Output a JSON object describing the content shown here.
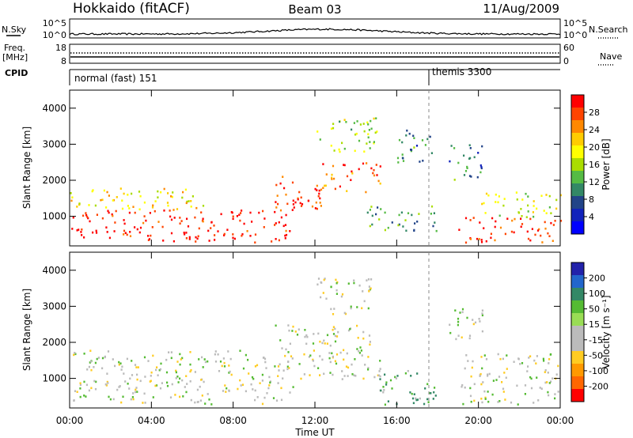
{
  "header": {
    "station": "Hokkaido (fitACF)",
    "beam": "Beam 03",
    "date": "11/Aug/2009"
  },
  "noise_panel": {
    "left_label": "N.Sky",
    "right_label": "N.Search",
    "ticks_left": [
      "10^5",
      "10^0"
    ],
    "ticks_right": [
      "10^5",
      "10^0"
    ]
  },
  "freq_panel": {
    "left_label_line1": "Freq.",
    "left_label_line2": "[MHz]",
    "ticks_left": [
      "18",
      "8"
    ],
    "right_label": "Nave",
    "ticks_right": [
      "60",
      "0"
    ]
  },
  "cpid_panel": {
    "label": "CPID",
    "segments": [
      {
        "name": "normal (fast) 151",
        "start_hour": 0
      },
      {
        "name": "themis 3300",
        "start_hour": 18.0
      }
    ]
  },
  "xaxis": {
    "title": "Time UT",
    "tick_labels": [
      "00:00",
      "04:00",
      "08:00",
      "12:00",
      "16:00",
      "20:00",
      "00:00"
    ],
    "tick_hours": [
      0,
      4,
      8,
      12,
      16,
      20,
      24
    ]
  },
  "yaxis": {
    "title": "Slant Range [km]",
    "tick_labels": [
      "1000",
      "2000",
      "3000",
      "4000"
    ],
    "tick_values": [
      1000,
      2000,
      3000,
      4000
    ],
    "range": [
      180,
      4500
    ]
  },
  "power_colorbar": {
    "title": "Power [dB]",
    "labels": [
      "28",
      "24",
      "20",
      "16",
      "12",
      "8",
      "4"
    ],
    "colors": [
      "#ff0000",
      "#ff4400",
      "#ff8800",
      "#ffcc00",
      "#ffff00",
      "#aadd00",
      "#55bb44",
      "#338866",
      "#224488",
      "#1122bb",
      "#0000ff"
    ]
  },
  "velocity_colorbar": {
    "title": "Velocity [m s⁻¹]",
    "labels": [
      "200",
      "100",
      "50",
      "15",
      "-15",
      "-50",
      "-100",
      "-200"
    ],
    "colors": [
      "#2222aa",
      "#2266cc",
      "#338866",
      "#55bb33",
      "#99dd55",
      "#bbbbbb",
      "#bbbbbb",
      "#ffcc22",
      "#ff9900",
      "#ff6600",
      "#ff0000"
    ]
  },
  "chart_data": {
    "type": "heatmap",
    "title": "Hokkaido (fitACF) Beam 03 11/Aug/2009",
    "xlabel": "Time UT",
    "ylabel": "Slant Range [km]",
    "xlim": [
      0,
      24
    ],
    "ylim": [
      180,
      4500
    ],
    "grid": false,
    "event_marker_hour": 18.0,
    "power_regions": [
      {
        "t0": 0.0,
        "t1": 11.0,
        "r0": 300,
        "r1": 1200,
        "level": "high",
        "approx_db": 28
      },
      {
        "t0": 0.0,
        "t1": 7.0,
        "r0": 1200,
        "r1": 1800,
        "level": "medium",
        "approx_db": 18
      },
      {
        "t0": 10.0,
        "t1": 12.3,
        "r0": 1000,
        "r1": 2200,
        "level": "high",
        "approx_db": 26
      },
      {
        "t0": 12.3,
        "t1": 15.2,
        "r0": 1700,
        "r1": 2500,
        "level": "high",
        "approx_db": 24
      },
      {
        "t0": 12.0,
        "t1": 15.0,
        "r0": 2800,
        "r1": 3800,
        "level": "medium",
        "approx_db": 14
      },
      {
        "t0": 14.5,
        "t1": 18.0,
        "r0": 600,
        "r1": 1300,
        "level": "low",
        "approx_db": 10
      },
      {
        "t0": 16.0,
        "t1": 17.8,
        "r0": 2500,
        "r1": 3500,
        "level": "low",
        "approx_db": 8
      },
      {
        "t0": 18.5,
        "t1": 20.2,
        "r0": 2000,
        "r1": 3000,
        "level": "low",
        "approx_db": 8
      },
      {
        "t0": 19.0,
        "t1": 24.0,
        "r0": 300,
        "r1": 1000,
        "level": "high",
        "approx_db": 26
      },
      {
        "t0": 20.0,
        "t1": 24.0,
        "r0": 1000,
        "r1": 1700,
        "level": "medium",
        "approx_db": 16
      }
    ],
    "velocity_regions": [
      {
        "t0": 0.0,
        "t1": 11.0,
        "r0": 300,
        "r1": 1800,
        "approx_ms": 0
      },
      {
        "t0": 10.0,
        "t1": 15.2,
        "r0": 1000,
        "r1": 2500,
        "approx_ms": 0
      },
      {
        "t0": 12.0,
        "t1": 15.0,
        "r0": 2800,
        "r1": 3800,
        "approx_ms": 0
      },
      {
        "t0": 15.0,
        "t1": 18.0,
        "r0": 300,
        "r1": 1300,
        "approx_ms": 30
      },
      {
        "t0": 18.5,
        "t1": 20.2,
        "r0": 2000,
        "r1": 3000,
        "approx_ms": 0
      },
      {
        "t0": 19.0,
        "t1": 24.0,
        "r0": 300,
        "r1": 1700,
        "approx_ms": 0
      }
    ]
  }
}
